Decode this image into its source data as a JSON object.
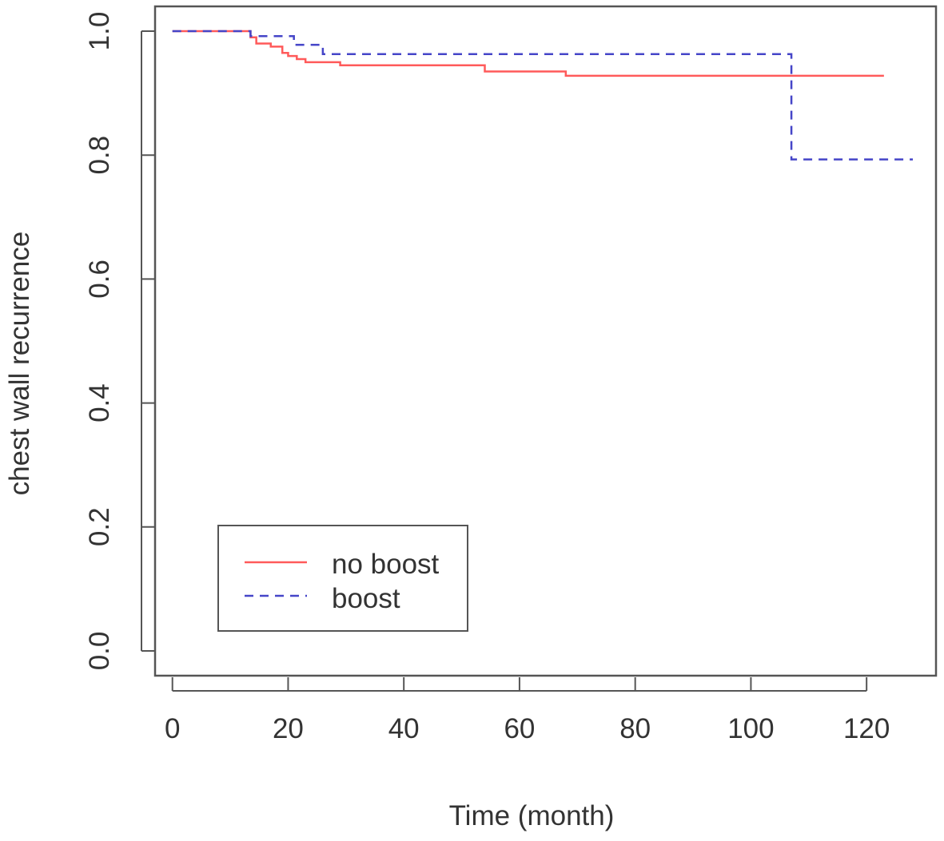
{
  "chart_data": {
    "type": "line",
    "title": "",
    "xlabel": "Time (month)",
    "ylabel": "chest wall recurrence",
    "xlim": [
      -3,
      132
    ],
    "ylim": [
      -0.04,
      1.04
    ],
    "x_ticks": [
      0,
      20,
      40,
      60,
      80,
      100,
      120
    ],
    "x_tick_labels": [
      "0",
      "20",
      "40",
      "60",
      "80",
      "100",
      "120"
    ],
    "y_ticks": [
      0.0,
      0.2,
      0.4,
      0.6,
      0.8,
      1.0
    ],
    "y_tick_labels": [
      "0.0",
      "0.2",
      "0.4",
      "0.6",
      "0.8",
      "1.0"
    ],
    "grid": false,
    "legend_position": "bottom-left",
    "series": [
      {
        "name": "no boost",
        "color": "#ff5a5a",
        "line_style": "solid",
        "step_points": [
          [
            0,
            1.0
          ],
          [
            13,
            1.0
          ],
          [
            13.5,
            0.99
          ],
          [
            14.5,
            0.98
          ],
          [
            17,
            0.975
          ],
          [
            19,
            0.965
          ],
          [
            20,
            0.96
          ],
          [
            21.5,
            0.955
          ],
          [
            23,
            0.95
          ],
          [
            29,
            0.945
          ],
          [
            54,
            0.935
          ],
          [
            68,
            0.928
          ],
          [
            123,
            0.928
          ]
        ]
      },
      {
        "name": "boost",
        "color": "#4545c8",
        "line_style": "dashed",
        "step_points": [
          [
            0,
            1.0
          ],
          [
            13,
            1.0
          ],
          [
            13.5,
            0.992
          ],
          [
            21,
            0.978
          ],
          [
            26,
            0.963
          ],
          [
            107,
            0.963
          ],
          [
            107,
            0.793
          ],
          [
            128,
            0.793
          ]
        ]
      }
    ]
  }
}
